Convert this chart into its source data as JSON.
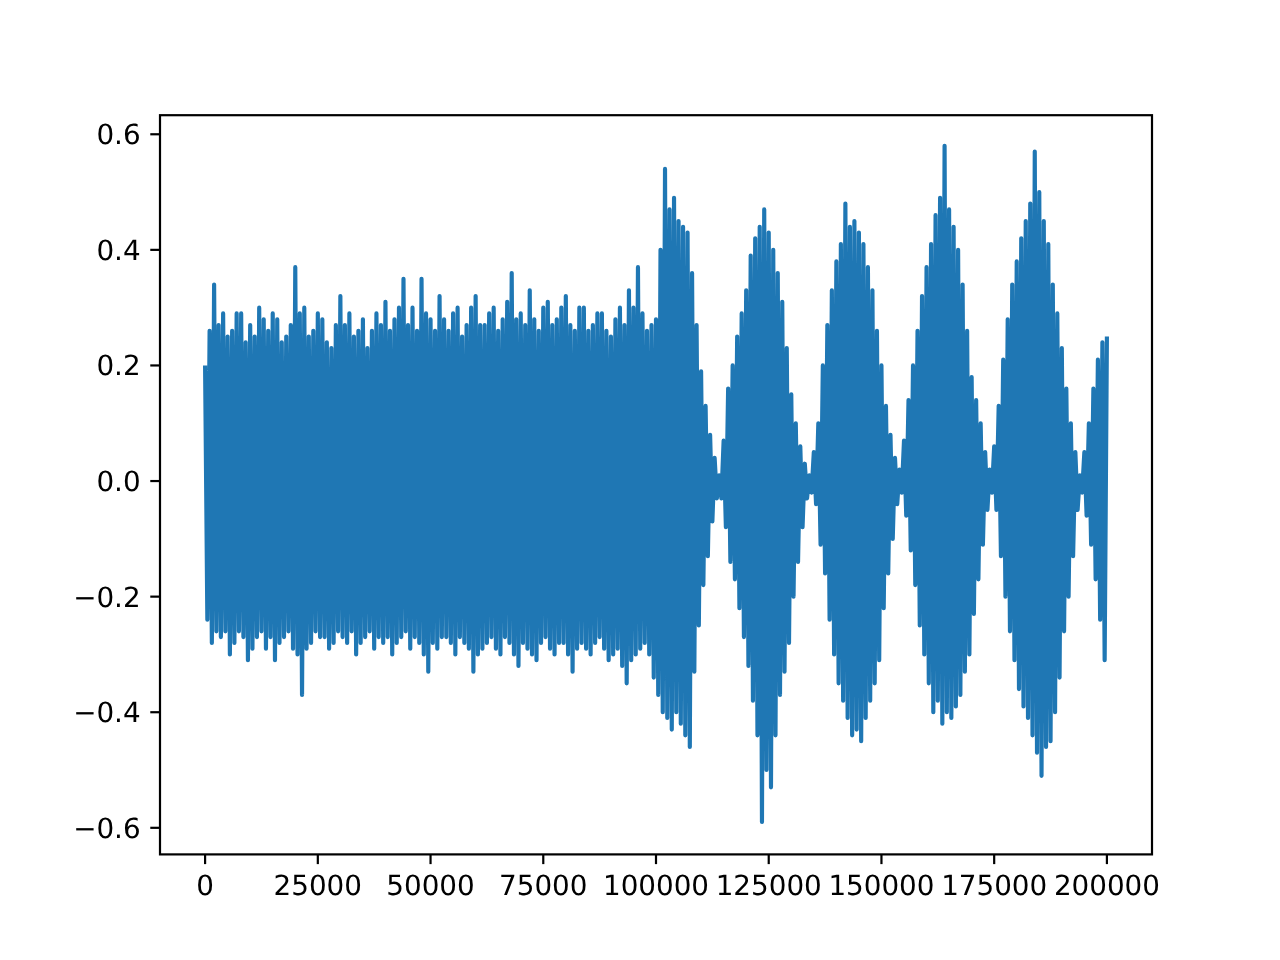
{
  "chart_data": {
    "type": "line",
    "x": [
      0,
      500,
      1000,
      1500,
      2000,
      2500,
      3000,
      3500,
      4000,
      4500,
      5000,
      5500,
      6000,
      6500,
      7000,
      7500,
      8000,
      8500,
      9000,
      9500,
      10000,
      10500,
      11000,
      11500,
      12000,
      12500,
      13000,
      13500,
      14000,
      14500,
      15000,
      15500,
      16000,
      16500,
      17000,
      17500,
      18000,
      18500,
      19000,
      19500,
      20000,
      20500,
      21000,
      21500,
      22000,
      22500,
      23000,
      23500,
      24000,
      24500,
      25000,
      25500,
      26000,
      26500,
      27000,
      27500,
      28000,
      28500,
      29000,
      29500,
      30000,
      30500,
      31000,
      31500,
      32000,
      32500,
      33000,
      33500,
      34000,
      34500,
      35000,
      35500,
      36000,
      36500,
      37000,
      37500,
      38000,
      38500,
      39000,
      39500,
      40000,
      40500,
      41000,
      41500,
      42000,
      42500,
      43000,
      43500,
      44000,
      44500,
      45000,
      45500,
      46000,
      46500,
      47000,
      47500,
      48000,
      48500,
      49000,
      49500,
      50000,
      50500,
      51000,
      51500,
      52000,
      52500,
      53000,
      53500,
      54000,
      54500,
      55000,
      55500,
      56000,
      56500,
      57000,
      57500,
      58000,
      58500,
      59000,
      59500,
      60000,
      60500,
      61000,
      61500,
      62000,
      62500,
      63000,
      63500,
      64000,
      64500,
      65000,
      65500,
      66000,
      66500,
      67000,
      67500,
      68000,
      68500,
      69000,
      69500,
      70000,
      70500,
      71000,
      71500,
      72000,
      72500,
      73000,
      73500,
      74000,
      74500,
      75000,
      75500,
      76000,
      76500,
      77000,
      77500,
      78000,
      78500,
      79000,
      79500,
      80000,
      80500,
      81000,
      81500,
      82000,
      82500,
      83000,
      83500,
      84000,
      84500,
      85000,
      85500,
      86000,
      86500,
      87000,
      87500,
      88000,
      88500,
      89000,
      89500,
      90000,
      90500,
      91000,
      91500,
      92000,
      92500,
      93000,
      93500,
      94000,
      94500,
      95000,
      95500,
      96000,
      96500,
      97000,
      97500,
      98000,
      98500,
      99000,
      99500,
      100000,
      100500,
      101000,
      101500,
      102000,
      102500,
      103000,
      103500,
      104000,
      104500,
      105000,
      105500,
      106000,
      106500,
      107000,
      107500,
      108000,
      108500,
      109000,
      109500,
      110000,
      110500,
      111000,
      111500,
      112000,
      112500,
      113000,
      113500,
      114000,
      114500,
      115000,
      115500,
      116000,
      116500,
      117000,
      117500,
      118000,
      118500,
      119000,
      119500,
      120000,
      120500,
      121000,
      121500,
      122000,
      122500,
      123000,
      123500,
      124000,
      124500,
      125000,
      125500,
      126000,
      126500,
      127000,
      127500,
      128000,
      128500,
      129000,
      129500,
      130000,
      130500,
      131000,
      131500,
      132000,
      132500,
      133000,
      133500,
      134000,
      134500,
      135000,
      135500,
      136000,
      136500,
      137000,
      137500,
      138000,
      138500,
      139000,
      139500,
      140000,
      140500,
      141000,
      141500,
      142000,
      142500,
      143000,
      143500,
      144000,
      144500,
      145000,
      145500,
      146000,
      146500,
      147000,
      147500,
      148000,
      148500,
      149000,
      149500,
      150000,
      150500,
      151000,
      151500,
      152000,
      152500,
      153000,
      153500,
      154000,
      154500,
      155000,
      155500,
      156000,
      156500,
      157000,
      157500,
      158000,
      158500,
      159000,
      159500,
      160000,
      160500,
      161000,
      161500,
      162000,
      162500,
      163000,
      163500,
      164000,
      164500,
      165000,
      165500,
      166000,
      166500,
      167000,
      167500,
      168000,
      168500,
      169000,
      169500,
      170000,
      170500,
      171000,
      171500,
      172000,
      172500,
      173000,
      173500,
      174000,
      174500,
      175000,
      175500,
      176000,
      176500,
      177000,
      177500,
      178000,
      178500,
      179000,
      179500,
      180000,
      180500,
      181000,
      181500,
      182000,
      182500,
      183000,
      183500,
      184000,
      184500,
      185000,
      185500,
      186000,
      186500,
      187000,
      187500,
      188000,
      188500,
      189000,
      189500,
      190000,
      190500,
      191000,
      191500,
      192000,
      192500,
      193000,
      193500,
      194000,
      194500,
      195000,
      195500,
      196000,
      196500,
      197000,
      197500,
      198000,
      198500,
      199000,
      199500,
      200000
    ],
    "series": [
      {
        "color": "#1f77b4",
        "values": [
          0.2,
          -0.24,
          0.26,
          -0.28,
          0.34,
          -0.26,
          0.27,
          -0.27,
          0.29,
          -0.26,
          0.25,
          -0.3,
          0.26,
          -0.28,
          0.29,
          -0.26,
          0.29,
          -0.27,
          0.24,
          -0.31,
          0.27,
          -0.29,
          0.25,
          -0.27,
          0.3,
          -0.26,
          0.28,
          -0.29,
          0.26,
          -0.27,
          0.29,
          -0.31,
          0.28,
          -0.28,
          0.24,
          -0.27,
          0.25,
          -0.26,
          0.27,
          -0.29,
          0.37,
          -0.3,
          0.29,
          -0.37,
          0.3,
          -0.29,
          0.25,
          -0.28,
          0.26,
          -0.26,
          0.29,
          -0.27,
          0.28,
          -0.27,
          0.24,
          -0.29,
          0.23,
          -0.28,
          0.27,
          -0.26,
          0.32,
          -0.27,
          0.27,
          -0.28,
          0.29,
          -0.26,
          0.25,
          -0.3,
          0.26,
          -0.28,
          0.28,
          -0.27,
          0.23,
          -0.26,
          0.26,
          -0.29,
          0.29,
          -0.27,
          0.27,
          -0.28,
          0.31,
          -0.27,
          0.26,
          -0.3,
          0.28,
          -0.28,
          0.3,
          -0.27,
          0.35,
          -0.26,
          0.27,
          -0.29,
          0.3,
          -0.27,
          0.26,
          -0.28,
          0.35,
          -0.3,
          0.29,
          -0.33,
          0.28,
          -0.28,
          0.26,
          -0.29,
          0.32,
          -0.27,
          0.28,
          -0.27,
          0.26,
          -0.28,
          0.29,
          -0.3,
          0.3,
          -0.27,
          0.25,
          -0.28,
          0.27,
          -0.29,
          0.3,
          -0.33,
          0.32,
          -0.3,
          0.27,
          -0.29,
          0.27,
          -0.28,
          0.29,
          -0.27,
          0.3,
          -0.29,
          0.26,
          -0.3,
          0.28,
          -0.27,
          0.31,
          -0.28,
          0.36,
          -0.3,
          0.28,
          -0.32,
          0.29,
          -0.28,
          0.27,
          -0.29,
          0.33,
          -0.3,
          0.28,
          -0.31,
          0.26,
          -0.28,
          0.3,
          -0.27,
          0.31,
          -0.29,
          0.27,
          -0.3,
          0.28,
          -0.28,
          0.3,
          -0.28,
          0.32,
          -0.3,
          0.27,
          -0.33,
          0.26,
          -0.29,
          0.3,
          -0.28,
          0.3,
          -0.29,
          0.26,
          -0.3,
          0.27,
          -0.28,
          0.29,
          -0.27,
          0.29,
          -0.29,
          0.26,
          -0.31,
          0.25,
          -0.3,
          0.28,
          -0.29,
          0.3,
          -0.32,
          0.27,
          -0.35,
          0.33,
          -0.31,
          0.3,
          -0.3,
          0.37,
          -0.29,
          0.29,
          -0.28,
          0.26,
          -0.3,
          0.27,
          -0.34,
          0.28,
          -0.37,
          0.4,
          -0.4,
          0.54,
          -0.41,
          0.47,
          -0.43,
          0.49,
          -0.4,
          0.45,
          -0.42,
          0.44,
          -0.44,
          0.43,
          -0.46,
          0.36,
          -0.33,
          0.27,
          -0.25,
          0.19,
          -0.18,
          0.13,
          -0.13,
          0.08,
          -0.07,
          0.04,
          -0.03,
          0.01,
          -0.03,
          0.07,
          -0.08,
          0.16,
          -0.14,
          0.2,
          -0.17,
          0.25,
          -0.22,
          0.29,
          -0.27,
          0.33,
          -0.32,
          0.39,
          -0.38,
          0.42,
          -0.44,
          0.44,
          -0.59,
          0.47,
          -0.5,
          0.43,
          -0.53,
          0.4,
          -0.44,
          0.36,
          -0.37,
          0.31,
          -0.33,
          0.23,
          -0.28,
          0.15,
          -0.2,
          0.1,
          -0.14,
          0.06,
          -0.08,
          0.03,
          -0.03,
          0.01,
          -0.02,
          0.05,
          -0.04,
          0.1,
          -0.11,
          0.2,
          -0.16,
          0.27,
          -0.24,
          0.33,
          -0.3,
          0.38,
          -0.35,
          0.41,
          -0.38,
          0.48,
          -0.41,
          0.44,
          -0.44,
          0.45,
          -0.43,
          0.43,
          -0.45,
          0.41,
          -0.41,
          0.37,
          -0.38,
          0.33,
          -0.35,
          0.26,
          -0.31,
          0.2,
          -0.22,
          0.13,
          -0.16,
          0.08,
          -0.1,
          0.04,
          -0.04,
          0.02,
          -0.02,
          0.07,
          -0.06,
          0.14,
          -0.12,
          0.2,
          -0.18,
          0.26,
          -0.25,
          0.32,
          -0.3,
          0.37,
          -0.35,
          0.41,
          -0.4,
          0.46,
          -0.38,
          0.49,
          -0.42,
          0.58,
          -0.4,
          0.47,
          -0.41,
          0.44,
          -0.39,
          0.4,
          -0.37,
          0.34,
          -0.33,
          0.26,
          -0.3,
          0.18,
          -0.23,
          0.14,
          -0.17,
          0.1,
          -0.11,
          0.05,
          -0.05,
          0.02,
          -0.02,
          0.06,
          -0.05,
          0.13,
          -0.13,
          0.21,
          -0.2,
          0.28,
          -0.26,
          0.34,
          -0.31,
          0.38,
          -0.36,
          0.42,
          -0.39,
          0.45,
          -0.41,
          0.48,
          -0.44,
          0.57,
          -0.47,
          0.5,
          -0.51,
          0.45,
          -0.46,
          0.41,
          -0.45,
          0.34,
          -0.4,
          0.29,
          -0.34,
          0.23,
          -0.26,
          0.16,
          -0.2,
          0.1,
          -0.13,
          0.05,
          -0.05,
          0.01,
          -0.02,
          0.05,
          -0.06,
          0.1,
          -0.11,
          0.16,
          -0.17,
          0.21,
          -0.24,
          0.24,
          -0.31,
          0.25
        ]
      }
    ],
    "xlim": [
      -10000,
      210000
    ],
    "xticks": [
      0,
      25000,
      50000,
      75000,
      100000,
      125000,
      150000,
      175000,
      200000
    ],
    "ylim": [
      -0.646,
      0.633
    ],
    "yticks": [
      {
        "value": -0.6,
        "label": "−0.6"
      },
      {
        "value": -0.4,
        "label": "−0.4"
      },
      {
        "value": -0.2,
        "label": "−0.2"
      },
      {
        "value": 0,
        "label": "0.0"
      },
      0.2,
      0.4,
      0.6
    ]
  }
}
